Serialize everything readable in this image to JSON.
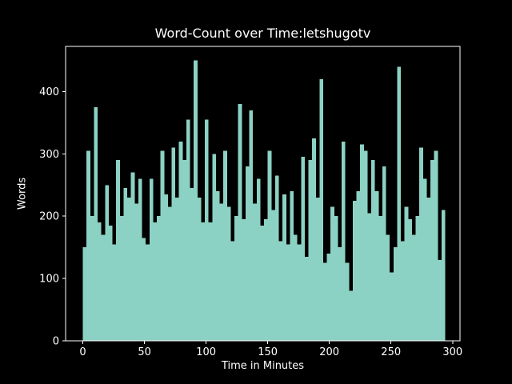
{
  "colors": {
    "background": "#000000",
    "text": "#ffffff",
    "axis": "#ffffff",
    "bar": "#8cd2c4"
  },
  "chart_data": {
    "type": "bar",
    "title": "Word-Count over Time:letshugotv",
    "xlabel": "Time in Minutes",
    "ylabel": "Words",
    "bar_width_minutes": 3,
    "bar_align": "edge",
    "grid": false,
    "legend": null,
    "xticks": [
      0,
      50,
      100,
      150,
      200,
      250,
      300
    ],
    "yticks": [
      0,
      100,
      200,
      300,
      400
    ],
    "xlim": [
      -14,
      306
    ],
    "ylim": [
      0,
      472.5
    ],
    "x": [
      0,
      3,
      6,
      9,
      12,
      15,
      18,
      21,
      24,
      27,
      30,
      33,
      36,
      39,
      42,
      45,
      48,
      51,
      54,
      57,
      60,
      63,
      66,
      69,
      72,
      75,
      78,
      81,
      84,
      87,
      90,
      93,
      96,
      99,
      102,
      105,
      108,
      111,
      114,
      117,
      120,
      123,
      126,
      129,
      132,
      135,
      138,
      141,
      144,
      147,
      150,
      153,
      156,
      159,
      162,
      165,
      168,
      171,
      174,
      177,
      180,
      183,
      186,
      189,
      192,
      195,
      198,
      201,
      204,
      207,
      210,
      213,
      216,
      219,
      222,
      225,
      228,
      231,
      234,
      237,
      240,
      243,
      246,
      249,
      252,
      255,
      258,
      261,
      264,
      267,
      270,
      273,
      276,
      279,
      282,
      285,
      288,
      291
    ],
    "values": [
      150,
      305,
      200,
      375,
      190,
      170,
      250,
      185,
      155,
      290,
      200,
      245,
      230,
      270,
      220,
      260,
      165,
      155,
      260,
      190,
      200,
      305,
      235,
      215,
      310,
      230,
      320,
      290,
      355,
      245,
      450,
      230,
      190,
      355,
      190,
      300,
      240,
      220,
      305,
      215,
      160,
      200,
      380,
      195,
      280,
      370,
      220,
      260,
      185,
      195,
      305,
      210,
      265,
      160,
      235,
      155,
      240,
      170,
      155,
      295,
      135,
      290,
      325,
      230,
      420,
      125,
      140,
      215,
      200,
      150,
      320,
      125,
      80,
      225,
      240,
      315,
      305,
      205,
      290,
      240,
      200,
      280,
      170,
      110,
      150,
      440,
      160,
      215,
      195,
      170,
      200,
      310,
      260,
      230,
      290,
      305,
      130,
      210
    ]
  }
}
